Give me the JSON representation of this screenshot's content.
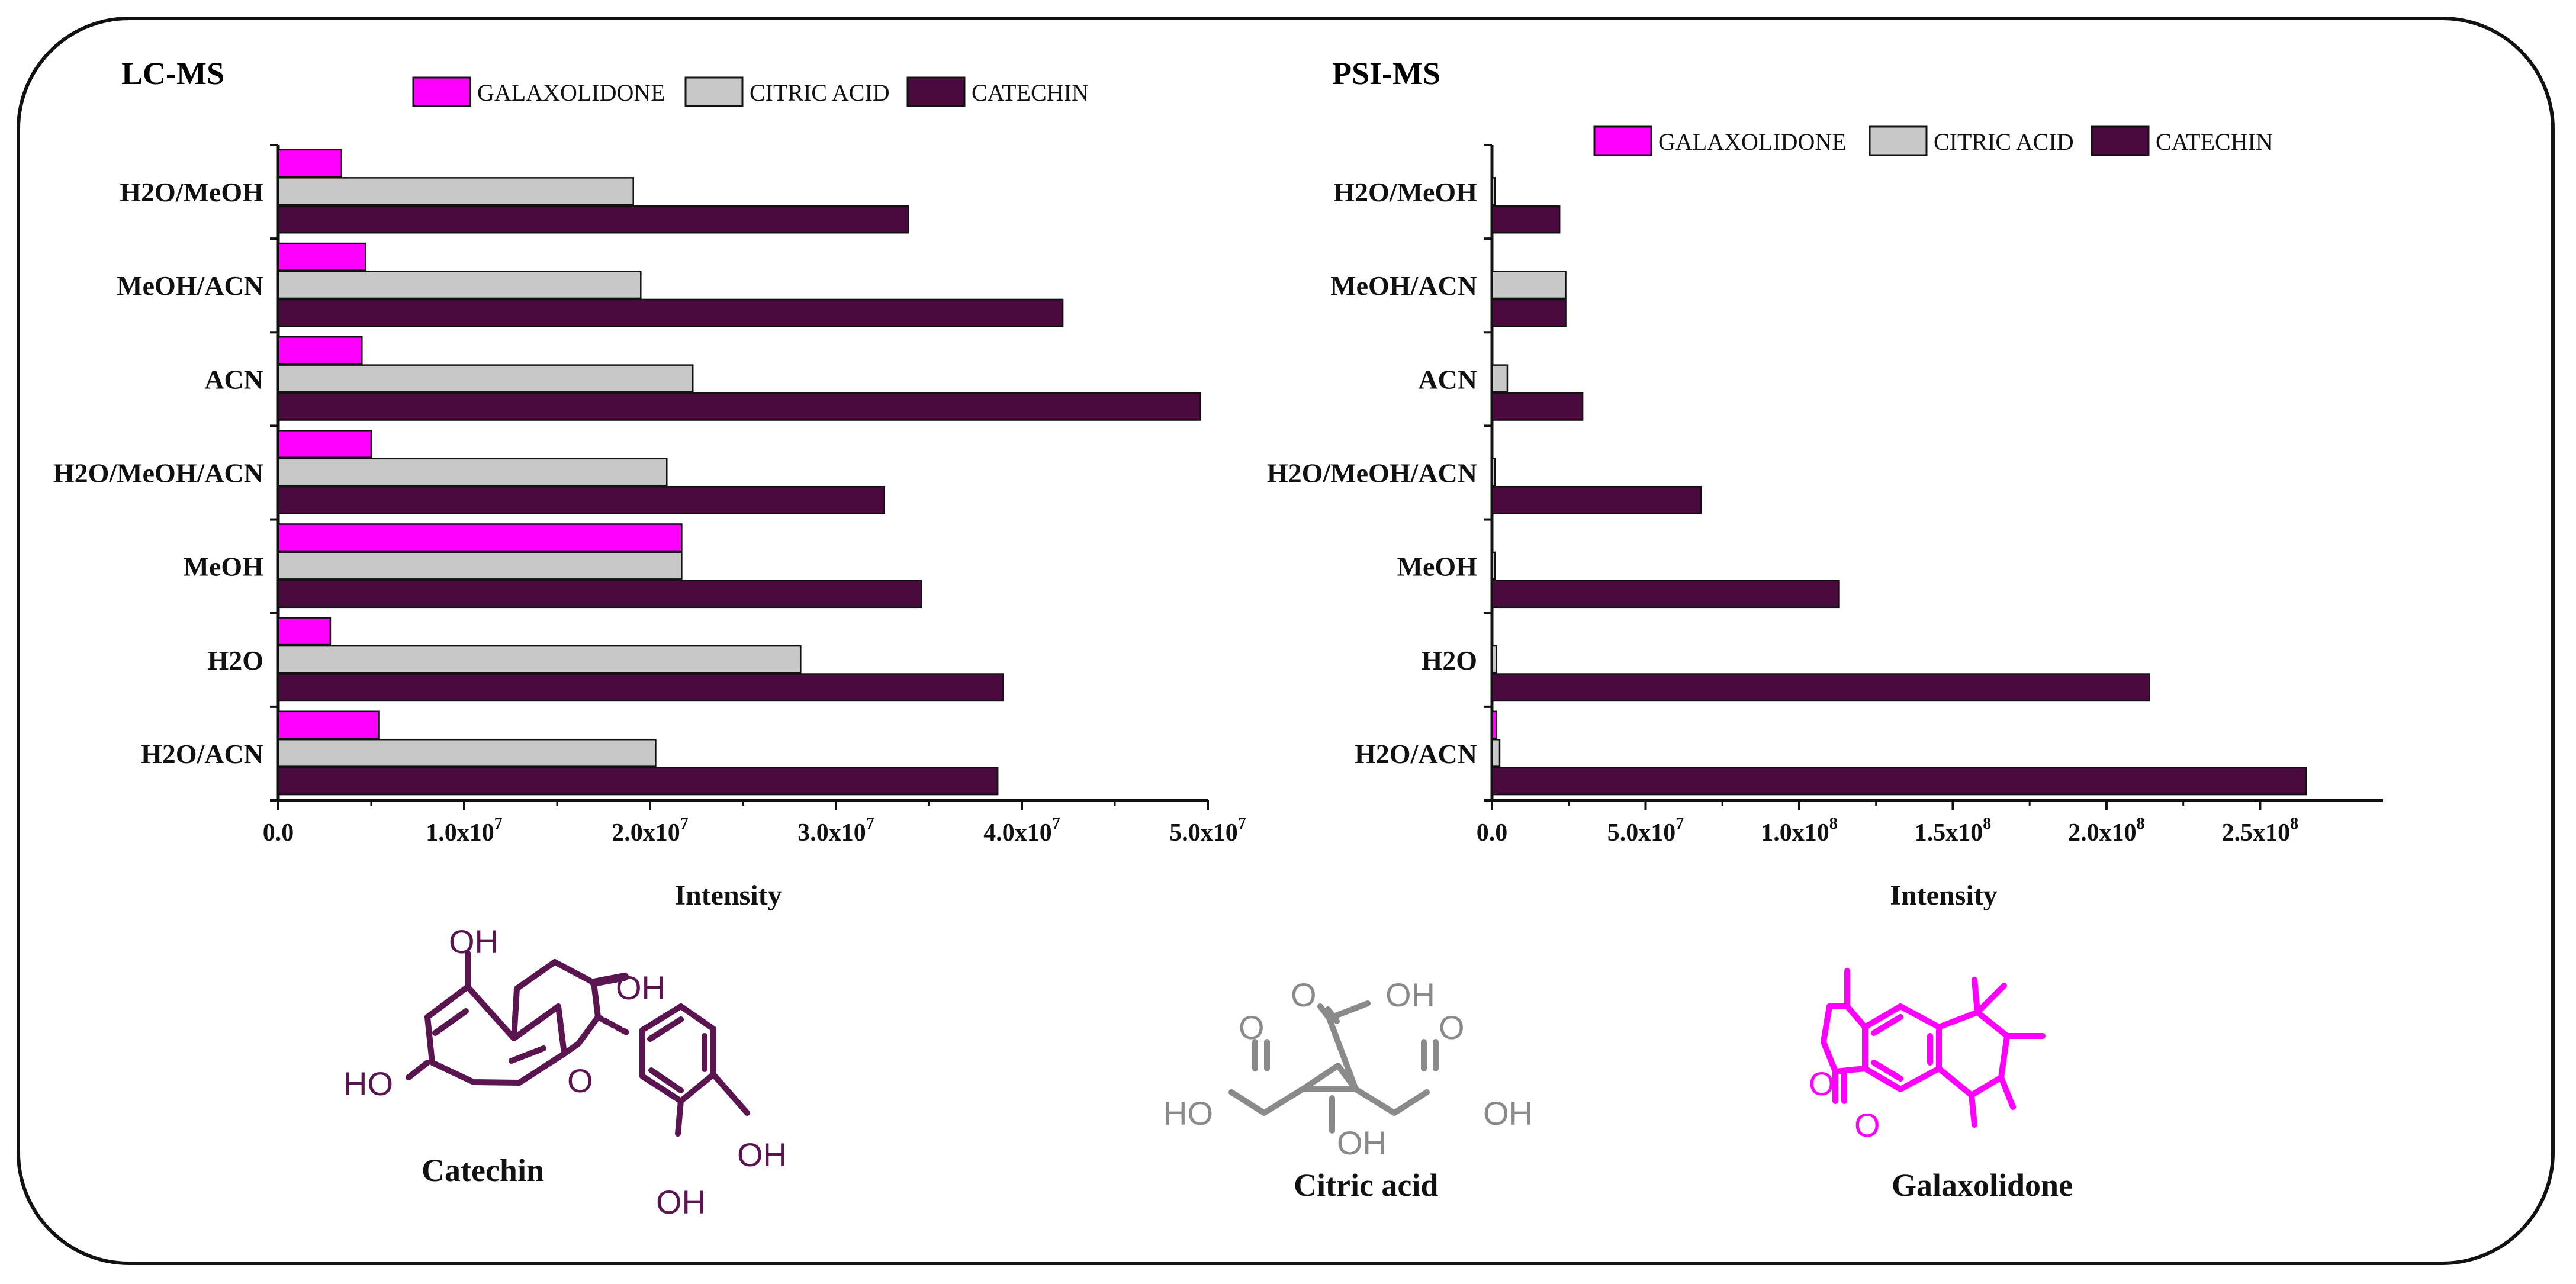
{
  "colors": {
    "galaxolidone": "#ff00ff",
    "citric_acid": "#c8c8c8",
    "catechin": "#4a0a3d",
    "citric_structure": "#8a8a8a"
  },
  "chart_data": [
    {
      "type": "bar",
      "orientation": "horizontal",
      "title": "LC-MS",
      "xlabel": "Intensity",
      "ylabel": "",
      "xlim": [
        0,
        50000000
      ],
      "x_tick_labels": [
        "0.0",
        "1.0x10",
        "2.0x10",
        "3.0x10",
        "4.0x10",
        "5.0x10"
      ],
      "x_tick_exponents": [
        "",
        "7",
        "7",
        "7",
        "7",
        "7"
      ],
      "categories": [
        "H2O/MeOH",
        "MeOH/ACN",
        "ACN",
        "H2O/MeOH/ACN",
        "MeOH",
        "H2O",
        "H2O/ACN"
      ],
      "legend_position": "top",
      "series": [
        {
          "name": "GALAXOLIDONE",
          "values": [
            3400000,
            4700000,
            4500000,
            5000000,
            21700000,
            2800000,
            5400000
          ]
        },
        {
          "name": "CITRIC ACID",
          "values": [
            19100000,
            19500000,
            22300000,
            20900000,
            21700000,
            28100000,
            20300000
          ]
        },
        {
          "name": "CATECHIN",
          "values": [
            33900000,
            42200000,
            49600000,
            32600000,
            34600000,
            39000000,
            38700000
          ]
        }
      ]
    },
    {
      "type": "bar",
      "orientation": "horizontal",
      "title": "PSI-MS",
      "xlabel": "Intensity",
      "ylabel": "",
      "xlim": [
        0,
        290000000
      ],
      "x_tick_labels": [
        "0.0",
        "5.0x10",
        "1.0x10",
        "1.5x10",
        "2.0x10",
        "2.5x10"
      ],
      "x_tick_exponents": [
        "",
        "7",
        "8",
        "8",
        "8",
        "8"
      ],
      "categories": [
        "H2O/MeOH",
        "MeOH/ACN",
        "ACN",
        "H2O/MeOH/ACN",
        "MeOH",
        "H2O",
        "H2O/ACN"
      ],
      "legend_position": "top",
      "series": [
        {
          "name": "GALAXOLIDONE",
          "values": [
            0,
            0,
            0,
            0,
            0,
            0,
            1500000
          ]
        },
        {
          "name": "CITRIC ACID",
          "values": [
            1000000,
            24000000,
            5000000,
            1000000,
            1000000,
            1500000,
            2500000
          ]
        },
        {
          "name": "CATECHIN",
          "values": [
            22000000,
            24000000,
            29500000,
            68000000,
            113000000,
            214000000,
            265000000
          ]
        }
      ]
    }
  ],
  "structures": {
    "catechin": {
      "name": "Catechin",
      "atoms": {
        "oh_top": "OH",
        "oh_c3": "OH",
        "ho_left": "HO",
        "ring_o": "O",
        "oh_right": "OH",
        "oh_bottom": "OH"
      }
    },
    "citric_acid": {
      "name": "Citric acid",
      "atoms": {
        "o_left": "O",
        "o_top": "O",
        "oh_top": "OH",
        "o_right": "O",
        "ho_left": "HO",
        "oh_center": "OH",
        "oh_right": "OH"
      }
    },
    "galaxolidone": {
      "name": "Galaxolidone",
      "atoms": {
        "ring_o": "O",
        "carbonyl_o": "O"
      }
    }
  }
}
